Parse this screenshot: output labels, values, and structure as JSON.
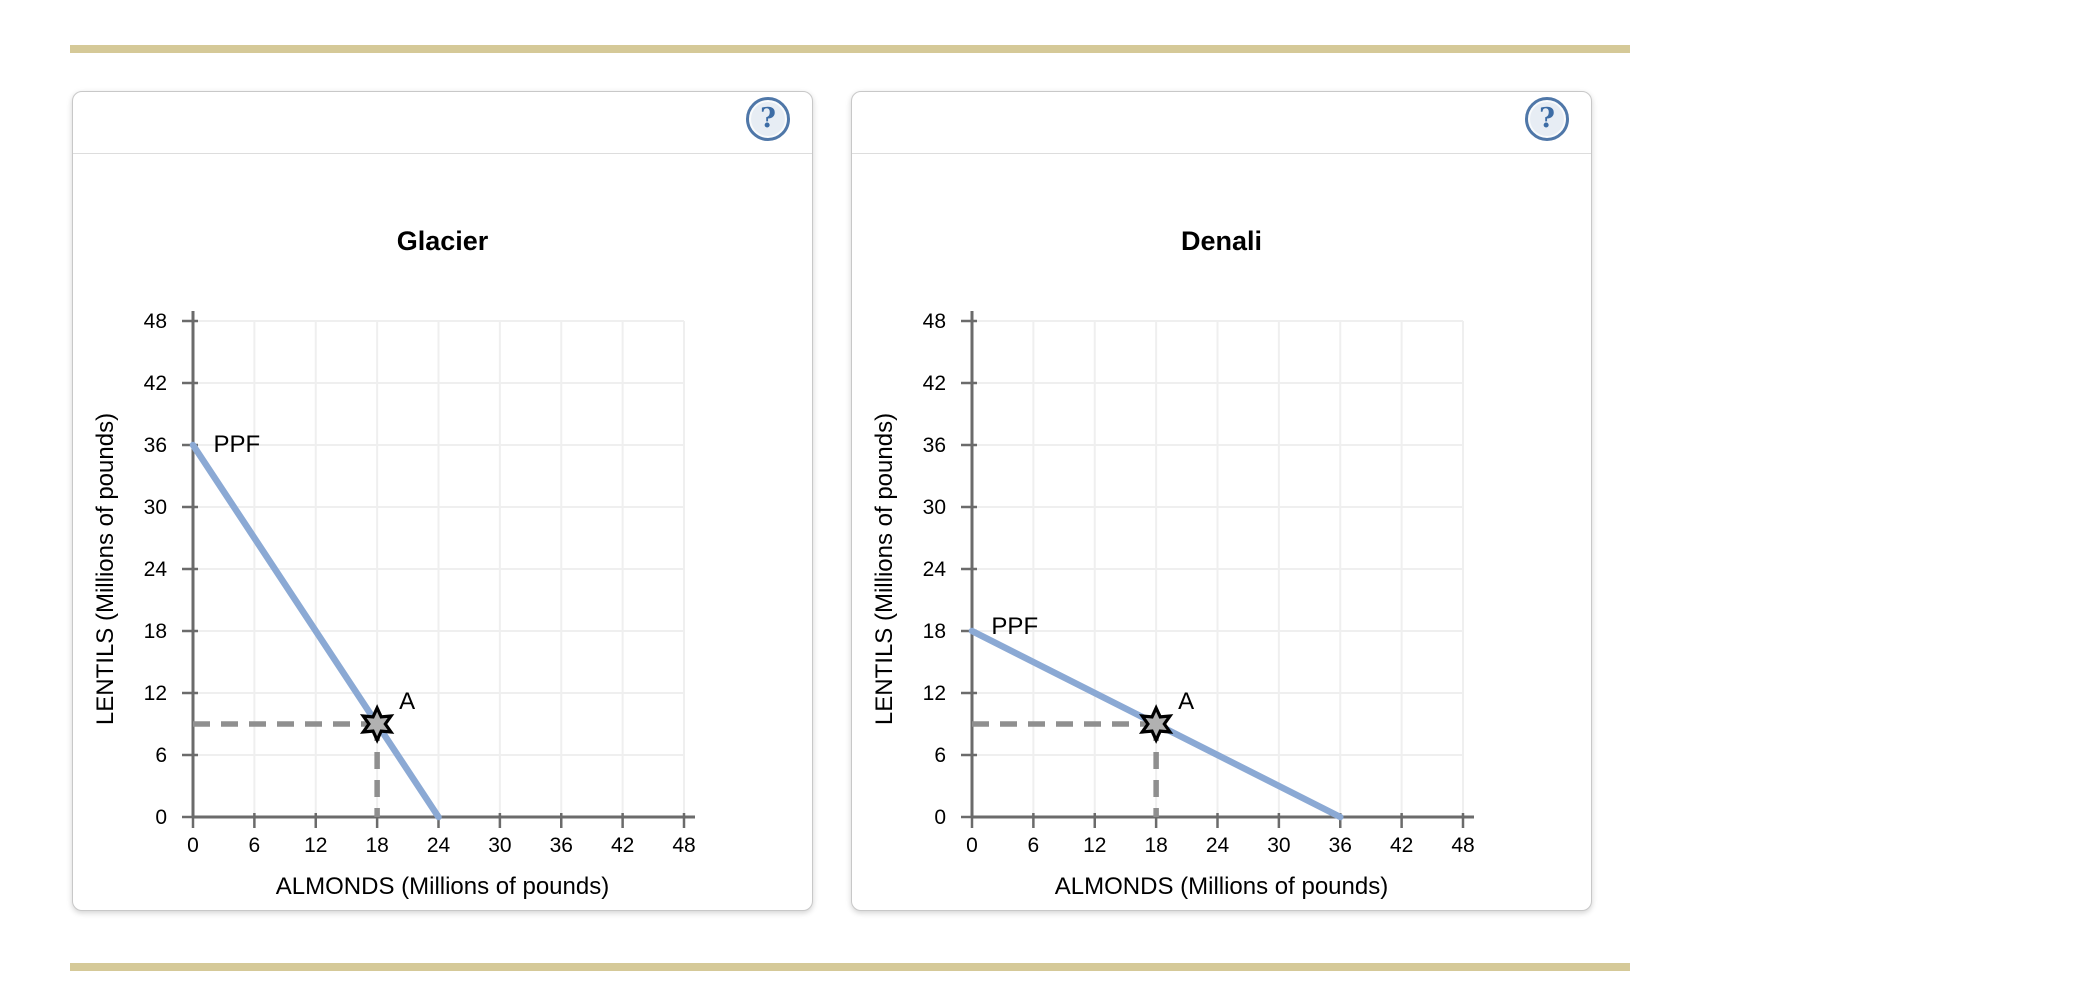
{
  "cards": [
    {
      "help": "?"
    },
    {
      "help": "?"
    }
  ],
  "chart_data": [
    {
      "type": "line",
      "title": "Glacier",
      "xlabel": "ALMONDS (Millions of pounds)",
      "ylabel": "LENTILS (Millions of pounds)",
      "xlim": [
        0,
        48
      ],
      "ylim": [
        0,
        48
      ],
      "xticks": [
        0,
        6,
        12,
        18,
        24,
        30,
        36,
        42,
        48
      ],
      "yticks": [
        0,
        6,
        12,
        18,
        24,
        30,
        36,
        42,
        48
      ],
      "grid": true,
      "legend_position": "none",
      "series": [
        {
          "name": "PPF",
          "x": [
            0,
            24
          ],
          "y": [
            36,
            0
          ],
          "label_at": {
            "x": 2.0,
            "y": 35.3
          }
        }
      ],
      "points": [
        {
          "label": "A",
          "x": 18,
          "y": 9,
          "marker": "six-point-star",
          "guides": true
        }
      ]
    },
    {
      "type": "line",
      "title": "Denali",
      "xlabel": "ALMONDS (Millions of pounds)",
      "ylabel": "LENTILS (Millions of pounds)",
      "xlim": [
        0,
        48
      ],
      "ylim": [
        0,
        48
      ],
      "xticks": [
        0,
        6,
        12,
        18,
        24,
        30,
        36,
        42,
        48
      ],
      "yticks": [
        0,
        6,
        12,
        18,
        24,
        30,
        36,
        42,
        48
      ],
      "grid": true,
      "legend_position": "none",
      "series": [
        {
          "name": "PPF",
          "x": [
            0,
            36
          ],
          "y": [
            18,
            0
          ],
          "label_at": {
            "x": 1.9,
            "y": 17.7
          }
        }
      ],
      "points": [
        {
          "label": "A",
          "x": 18,
          "y": 9,
          "marker": "six-point-star",
          "guides": true
        }
      ]
    }
  ],
  "colors": {
    "accent_bar": "#d5c998",
    "card_border": "#c8c8c8",
    "divider": "#dddddd",
    "ppf_line": "#8ba9d4",
    "guide_dash": "#8f8f8f",
    "marker_fill": "#b1b1b1",
    "marker_stroke": "#000000",
    "axis": "#6b6b6b",
    "grid": "#efefef",
    "help_ring": "#4f77a8",
    "help_bg": "#e7edf4",
    "help_mark": "#3c6ca5"
  }
}
